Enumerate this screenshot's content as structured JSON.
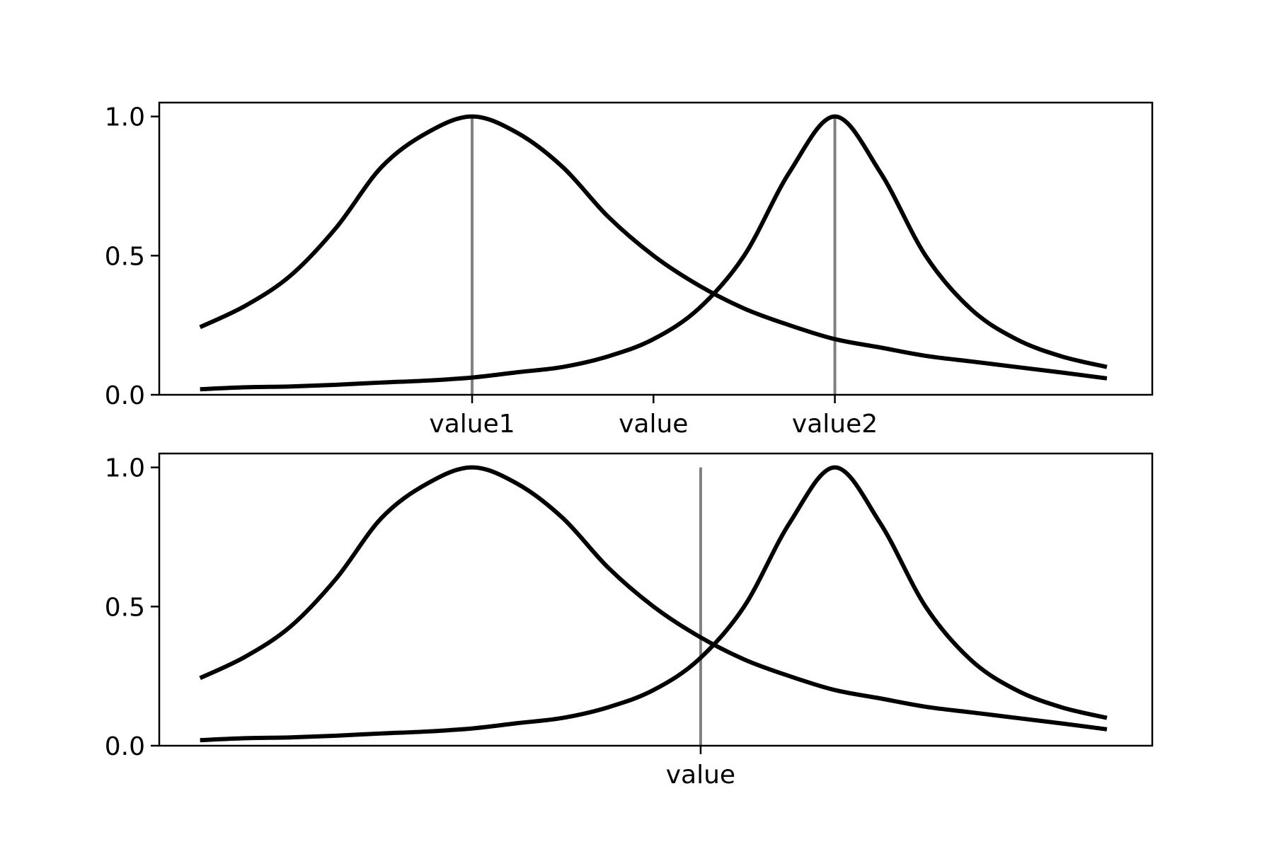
{
  "chart_data": [
    {
      "type": "line",
      "title": "",
      "xlabel": "",
      "ylabel": "",
      "xlim": [
        -2.45,
        8.5
      ],
      "ylim": [
        0,
        1.05
      ],
      "yticks": [
        0.0,
        0.5,
        1.0
      ],
      "ytick_labels": [
        "0.0",
        "0.5",
        "1.0"
      ],
      "xticks": [
        1,
        3,
        5
      ],
      "xtick_labels": [
        "value1",
        "value",
        "value2"
      ],
      "vlines": [
        1,
        5
      ],
      "grid": false,
      "legend": "none",
      "series": [
        {
          "x": [
            -2,
            -1.5,
            -1,
            -0.5,
            0,
            0.5,
            1,
            1.5,
            2,
            2.5,
            3,
            3.5,
            4,
            4.5,
            5,
            5.5,
            6,
            6.5,
            7,
            7.5,
            8
          ],
          "values": [
            0.243,
            0.32,
            0.429,
            0.6,
            0.818,
            0.941,
            1.0,
            0.941,
            0.818,
            0.64,
            0.5,
            0.393,
            0.31,
            0.25,
            0.2,
            0.17,
            0.14,
            0.12,
            0.1,
            0.08,
            0.059
          ]
        },
        {
          "x": [
            -2,
            -1.5,
            -1,
            -0.5,
            0,
            0.5,
            1,
            1.5,
            2,
            2.5,
            3,
            3.5,
            4,
            4.5,
            5,
            5.5,
            6,
            6.5,
            7,
            7.5,
            8
          ],
          "values": [
            0.02,
            0.027,
            0.03,
            0.036,
            0.044,
            0.051,
            0.062,
            0.081,
            0.1,
            0.138,
            0.2,
            0.31,
            0.5,
            0.8,
            1.0,
            0.8,
            0.5,
            0.308,
            0.2,
            0.138,
            0.1
          ]
        }
      ]
    },
    {
      "type": "line",
      "title": "",
      "xlabel": "",
      "ylabel": "",
      "xlim": [
        -2.45,
        8.5
      ],
      "ylim": [
        0,
        1.05
      ],
      "yticks": [
        0.0,
        0.5,
        1.0
      ],
      "ytick_labels": [
        "0.0",
        "0.5",
        "1.0"
      ],
      "xticks": [
        3.52
      ],
      "xtick_labels": [
        "value"
      ],
      "vlines": [
        3.52
      ],
      "grid": false,
      "legend": "none",
      "series": [
        {
          "x": [
            -2,
            -1.5,
            -1,
            -0.5,
            0,
            0.5,
            1,
            1.5,
            2,
            2.5,
            3,
            3.5,
            4,
            4.5,
            5,
            5.5,
            6,
            6.5,
            7,
            7.5,
            8
          ],
          "values": [
            0.243,
            0.32,
            0.429,
            0.6,
            0.818,
            0.941,
            1.0,
            0.941,
            0.818,
            0.64,
            0.5,
            0.393,
            0.31,
            0.25,
            0.2,
            0.17,
            0.14,
            0.12,
            0.1,
            0.08,
            0.059
          ]
        },
        {
          "x": [
            -2,
            -1.5,
            -1,
            -0.5,
            0,
            0.5,
            1,
            1.5,
            2,
            2.5,
            3,
            3.5,
            4,
            4.5,
            5,
            5.5,
            6,
            6.5,
            7,
            7.5,
            8
          ],
          "values": [
            0.02,
            0.027,
            0.03,
            0.036,
            0.044,
            0.051,
            0.062,
            0.081,
            0.1,
            0.138,
            0.2,
            0.31,
            0.5,
            0.8,
            1.0,
            0.8,
            0.5,
            0.308,
            0.2,
            0.138,
            0.1
          ]
        }
      ]
    }
  ]
}
